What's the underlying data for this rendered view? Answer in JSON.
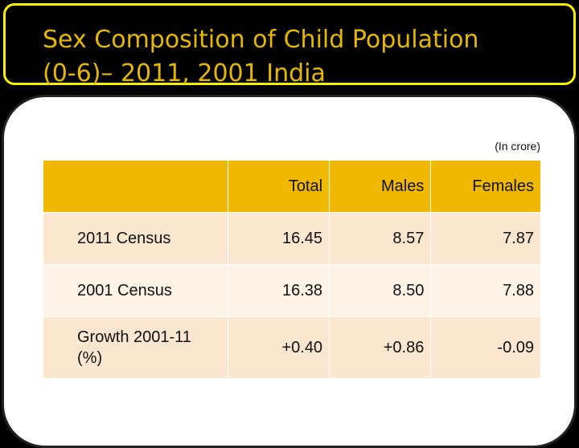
{
  "slide": {
    "title_line1": "Sex Composition of Child Population",
    "title_line2": "(0-6)– 2011, 2001 India",
    "unit_note": "(In crore)"
  },
  "table": {
    "headers": [
      "",
      "Total",
      "Males",
      "Females"
    ],
    "rows": [
      {
        "label": "2011 Census",
        "total": "16.45",
        "males": "8.57",
        "females": "7.87"
      },
      {
        "label": "2001 Census",
        "total": "16.38",
        "males": "8.50",
        "females": "7.88"
      },
      {
        "label_line1": "Growth 2001-11",
        "label_line2": "(%)",
        "total": "+0.40",
        "males": "+0.86",
        "females": "-0.09"
      }
    ]
  },
  "colors": {
    "title_text": "#e6b800",
    "title_border": "#f4f000",
    "header_bg": "#f0b800",
    "row_bg_odd": "#fbe6cf",
    "row_bg_even": "#fdf2e6"
  }
}
